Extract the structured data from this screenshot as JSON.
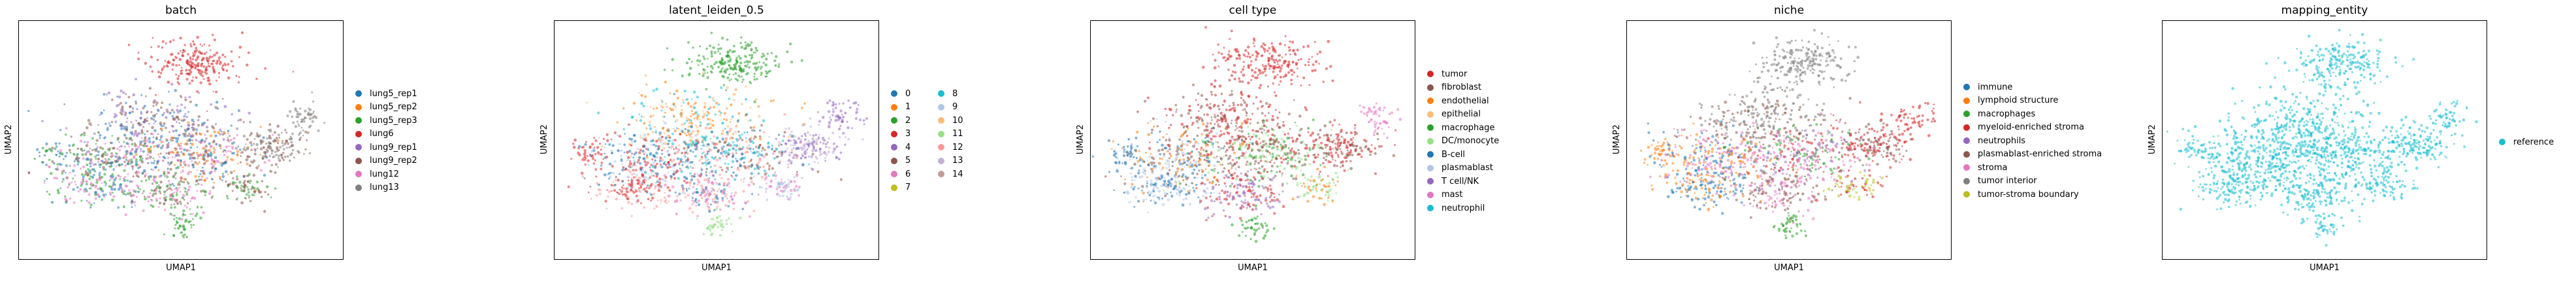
{
  "chart_data": [
    {
      "type": "scatter",
      "title": "batch",
      "xlabel": "UMAP1",
      "ylabel": "UMAP2",
      "grid": false,
      "legend_position": "right",
      "series": [
        {
          "name": "lung5_rep1",
          "color": "#1f77b4"
        },
        {
          "name": "lung5_rep2",
          "color": "#ff7f0e"
        },
        {
          "name": "lung5_rep3",
          "color": "#2ca02c"
        },
        {
          "name": "lung6",
          "color": "#d62728"
        },
        {
          "name": "lung9_rep1",
          "color": "#9467bd"
        },
        {
          "name": "lung9_rep2",
          "color": "#8c564b"
        },
        {
          "name": "lung12",
          "color": "#e377c2"
        },
        {
          "name": "lung13",
          "color": "#7f7f7f"
        }
      ]
    },
    {
      "type": "scatter",
      "title": "latent_leiden_0.5",
      "xlabel": "UMAP1",
      "ylabel": "UMAP2",
      "grid": false,
      "legend_position": "right",
      "legend_columns": 2,
      "series": [
        {
          "name": "0",
          "color": "#1f77b4"
        },
        {
          "name": "1",
          "color": "#ff7f0e"
        },
        {
          "name": "2",
          "color": "#2ca02c"
        },
        {
          "name": "3",
          "color": "#d62728"
        },
        {
          "name": "4",
          "color": "#9467bd"
        },
        {
          "name": "5",
          "color": "#8c564b"
        },
        {
          "name": "6",
          "color": "#e377c2"
        },
        {
          "name": "7",
          "color": "#bcbd22"
        },
        {
          "name": "8",
          "color": "#17becf"
        },
        {
          "name": "9",
          "color": "#aec7e8"
        },
        {
          "name": "10",
          "color": "#ffbb78"
        },
        {
          "name": "11",
          "color": "#98df8a"
        },
        {
          "name": "12",
          "color": "#ff9896"
        },
        {
          "name": "13",
          "color": "#c5b0d5"
        },
        {
          "name": "14",
          "color": "#c49c94"
        }
      ]
    },
    {
      "type": "scatter",
      "title": "cell type",
      "xlabel": "UMAP1",
      "ylabel": "UMAP2",
      "grid": false,
      "legend_position": "right",
      "series": [
        {
          "name": "tumor",
          "color": "#d62728"
        },
        {
          "name": "fibroblast",
          "color": "#8c564b"
        },
        {
          "name": "endothelial",
          "color": "#ff7f0e"
        },
        {
          "name": "epithelial",
          "color": "#ffbb78"
        },
        {
          "name": "macrophage",
          "color": "#2ca02c"
        },
        {
          "name": "DC/monocyte",
          "color": "#98df8a"
        },
        {
          "name": "B-cell",
          "color": "#1f77b4"
        },
        {
          "name": "plasmablast",
          "color": "#aec7e8"
        },
        {
          "name": "T cell/NK",
          "color": "#9467bd"
        },
        {
          "name": "mast",
          "color": "#e377c2"
        },
        {
          "name": "neutrophil",
          "color": "#17becf"
        }
      ]
    },
    {
      "type": "scatter",
      "title": "niche",
      "xlabel": "UMAP1",
      "ylabel": "UMAP2",
      "grid": false,
      "legend_position": "right",
      "series": [
        {
          "name": "immune",
          "color": "#1f77b4"
        },
        {
          "name": "lymphoid structure",
          "color": "#ff7f0e"
        },
        {
          "name": "macrophages",
          "color": "#2ca02c"
        },
        {
          "name": "myeloid-enriched stroma",
          "color": "#d62728"
        },
        {
          "name": "neutrophils",
          "color": "#9467bd"
        },
        {
          "name": "plasmablast-enriched stroma",
          "color": "#8c564b"
        },
        {
          "name": "stroma",
          "color": "#e377c2"
        },
        {
          "name": "tumor interior",
          "color": "#7f7f7f"
        },
        {
          "name": "tumor-stroma boundary",
          "color": "#bcbd22"
        }
      ]
    },
    {
      "type": "scatter",
      "title": "mapping_entity",
      "xlabel": "UMAP1",
      "ylabel": "UMAP2",
      "grid": false,
      "legend_position": "right",
      "series": [
        {
          "name": "reference",
          "color": "#17becf"
        }
      ]
    }
  ]
}
